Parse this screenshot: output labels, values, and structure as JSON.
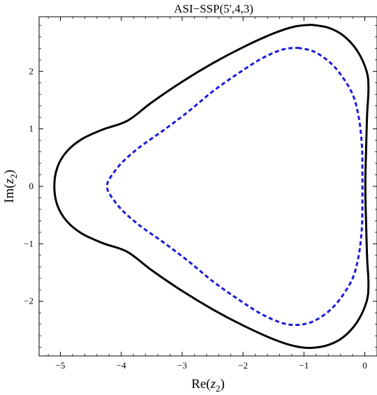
{
  "chart_data": {
    "type": "line",
    "title": "ASI−SSP(5',4,3)",
    "xlabel_main": "Re(",
    "xlabel_var": "z",
    "xlabel_sub": "2",
    "xlabel_close": ")",
    "ylabel_main": "Im(",
    "ylabel_var": "z",
    "ylabel_sub": "2",
    "ylabel_close": ")",
    "xlim": [
      -5.35,
      0.2
    ],
    "ylim": [
      -2.95,
      2.95
    ],
    "xticks": [
      -5,
      -4,
      -3,
      -2,
      -1,
      0
    ],
    "xtick_labels": [
      "−5",
      "−4",
      "−3",
      "−2",
      "−1",
      "0"
    ],
    "yticks": [
      -2,
      -1,
      0,
      1,
      2
    ],
    "ytick_labels": [
      "−2",
      "−1",
      "0",
      "1",
      "2"
    ],
    "grid": false,
    "series": [
      {
        "style": "solid",
        "color": "#000000",
        "points": [
          [
            -0.88,
            2.81
          ],
          [
            -0.6,
            2.76
          ],
          [
            -0.35,
            2.62
          ],
          [
            -0.12,
            2.35
          ],
          [
            0.03,
            2.0
          ],
          [
            0.06,
            1.7
          ],
          [
            0.04,
            1.3
          ],
          [
            0.03,
            1.0
          ],
          [
            0.02,
            0.6
          ],
          [
            0.01,
            0.2
          ],
          [
            0.01,
            -0.2
          ],
          [
            0.02,
            -0.6
          ],
          [
            0.03,
            -1.0
          ],
          [
            0.04,
            -1.3
          ],
          [
            0.06,
            -1.7
          ],
          [
            0.03,
            -2.0
          ],
          [
            -0.12,
            -2.35
          ],
          [
            -0.35,
            -2.62
          ],
          [
            -0.6,
            -2.76
          ],
          [
            -0.88,
            -2.81
          ],
          [
            -1.15,
            -2.78
          ],
          [
            -1.5,
            -2.66
          ],
          [
            -2.0,
            -2.42
          ],
          [
            -2.5,
            -2.14
          ],
          [
            -3.0,
            -1.82
          ],
          [
            -3.5,
            -1.46
          ],
          [
            -3.9,
            -1.14
          ],
          [
            -4.3,
            -0.99
          ],
          [
            -4.65,
            -0.82
          ],
          [
            -4.9,
            -0.6
          ],
          [
            -5.05,
            -0.33
          ],
          [
            -5.1,
            0.0
          ],
          [
            -5.05,
            0.33
          ],
          [
            -4.9,
            0.6
          ],
          [
            -4.65,
            0.82
          ],
          [
            -4.3,
            0.99
          ],
          [
            -3.9,
            1.14
          ],
          [
            -3.5,
            1.46
          ],
          [
            -3.0,
            1.82
          ],
          [
            -2.5,
            2.14
          ],
          [
            -2.0,
            2.42
          ],
          [
            -1.5,
            2.66
          ],
          [
            -1.15,
            2.78
          ],
          [
            -0.88,
            2.81
          ]
        ]
      },
      {
        "style": "dashed",
        "color": "#1a1adb",
        "points": [
          [
            -1.1,
            2.41
          ],
          [
            -0.85,
            2.35
          ],
          [
            -0.6,
            2.18
          ],
          [
            -0.4,
            1.95
          ],
          [
            -0.2,
            1.6
          ],
          [
            -0.1,
            1.2
          ],
          [
            -0.05,
            0.75
          ],
          [
            -0.04,
            0.3
          ],
          [
            -0.04,
            -0.3
          ],
          [
            -0.05,
            -0.75
          ],
          [
            -0.1,
            -1.2
          ],
          [
            -0.2,
            -1.6
          ],
          [
            -0.4,
            -1.95
          ],
          [
            -0.6,
            -2.18
          ],
          [
            -0.85,
            -2.35
          ],
          [
            -1.1,
            -2.41
          ],
          [
            -1.35,
            -2.38
          ],
          [
            -1.7,
            -2.22
          ],
          [
            -2.1,
            -1.95
          ],
          [
            -2.5,
            -1.65
          ],
          [
            -2.9,
            -1.3
          ],
          [
            -3.3,
            -0.98
          ],
          [
            -3.7,
            -0.68
          ],
          [
            -4.0,
            -0.4
          ],
          [
            -4.2,
            -0.12
          ],
          [
            -4.23,
            0.0
          ],
          [
            -4.2,
            0.12
          ],
          [
            -4.0,
            0.4
          ],
          [
            -3.7,
            0.68
          ],
          [
            -3.3,
            0.98
          ],
          [
            -2.9,
            1.3
          ],
          [
            -2.5,
            1.65
          ],
          [
            -2.1,
            1.95
          ],
          [
            -1.7,
            2.22
          ],
          [
            -1.35,
            2.38
          ],
          [
            -1.1,
            2.41
          ]
        ]
      }
    ]
  }
}
